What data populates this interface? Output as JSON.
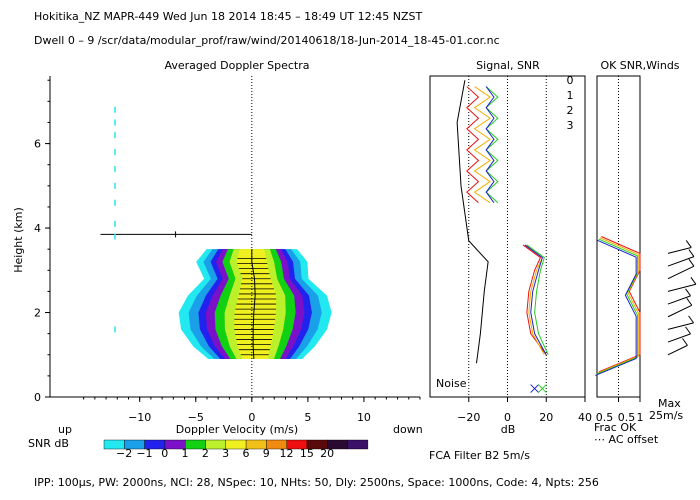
{
  "header": {
    "line1": "Hokitika_NZ  MAPR-449  Wed Jun 18 2014 18:45 – 18:49 UT 12:45 NZST",
    "line2": "Dwell  0 –  9   /scr/data/modular_prof/raw/wind/20140618/18-Jun-2014_18-45-01.cor.nc"
  },
  "footer": {
    "params": "IPP: 100µs,  PW: 2000ns,  NCI:  28,  NSpec: 10,  NHts: 50,  Dly: 2500ns,  Space: 1000ns,  Code: 4,  Npts: 256",
    "fca": "FCA Filter B2   5m/s"
  },
  "colors": {
    "snr_scale": [
      "#22e8f0",
      "#1aa0e8",
      "#2222ee",
      "#7a10c8",
      "#12d012",
      "#bcf02a",
      "#f0f020",
      "#f0c018",
      "#f08a10",
      "#ee1010",
      "#5a0a0a",
      "#2a0a30",
      "#3a1068"
    ],
    "radial_0": "#ee1010",
    "radial_1": "#f0b000",
    "radial_2": "#20d020",
    "radial_3": "#2020d0"
  },
  "chart_data": [
    {
      "type": "heatmap",
      "title": "Averaged Doppler Spectra",
      "xlabel": "Doppler Velocity (m/s)",
      "ylabel": "Height (km)",
      "xlim": [
        -18,
        15
      ],
      "ylim": [
        0,
        7.6
      ],
      "x_ticks": [
        -10,
        -5,
        0,
        5,
        10
      ],
      "x_tick_labels": [
        "−10",
        "−5",
        "0",
        "5",
        "10"
      ],
      "y_ticks": [
        0,
        2,
        4,
        6
      ],
      "y_tick_labels": [
        "0",
        "2",
        "4",
        "6"
      ],
      "x_end_labels": {
        "left": "up",
        "right": "down"
      },
      "colorbar": {
        "label": "SNR dB",
        "tick_labels": [
          "−2",
          "−1",
          "0",
          "1",
          "2",
          "3",
          "6",
          "9",
          "12",
          "15",
          "20"
        ]
      },
      "spectral_shell": {
        "heights_km": [
          0.9,
          1.2,
          1.6,
          2.0,
          2.4,
          2.8,
          3.2,
          3.5
        ],
        "center_ms": [
          0.3,
          0.2,
          0.2,
          0.3,
          0.5,
          0.4,
          0.0,
          0.0
        ],
        "halfwidth_ms": [
          2.7,
          3.5,
          4.2,
          4.4,
          4.0,
          3.0,
          3.2,
          2.6
        ]
      },
      "clutter_line": {
        "height_km": 3.85,
        "x_from_ms": -13.5,
        "x_to_ms": 0.0
      }
    },
    {
      "type": "line",
      "title": "Signal, SNR",
      "xlabel": "dB",
      "xlim": [
        -40,
        40
      ],
      "ylim": [
        0,
        7.6
      ],
      "x_ticks": [
        -20,
        0,
        20,
        40
      ],
      "x_tick_labels": [
        "−20",
        "0",
        "20",
        "40"
      ],
      "noise_label": "Noise",
      "series": [
        {
          "name": "0",
          "height_km": [
            1.0,
            1.5,
            2.0,
            2.5,
            3.0,
            3.3,
            3.6
          ],
          "snr_db": [
            20,
            12,
            10,
            11,
            14,
            17,
            8
          ]
        },
        {
          "name": "1",
          "height_km": [
            1.0,
            1.5,
            2.0,
            2.5,
            3.0,
            3.3,
            3.6
          ],
          "snr_db": [
            19,
            13,
            11,
            12,
            15,
            18,
            9
          ]
        },
        {
          "name": "2",
          "height_km": [
            1.0,
            1.5,
            2.0,
            2.5,
            3.0,
            3.3,
            3.6
          ],
          "snr_db": [
            21,
            16,
            14,
            15,
            17,
            19,
            10
          ]
        },
        {
          "name": "3",
          "height_km": [
            1.0,
            1.5,
            2.0,
            2.5,
            3.0,
            3.3,
            3.6
          ],
          "snr_db": [
            20,
            14,
            12,
            13,
            16,
            18,
            9
          ]
        },
        {
          "name": "noise",
          "height_km": [
            0.8,
            1.5,
            2.5,
            3.2,
            3.7,
            5.0,
            6.5,
            7.5
          ],
          "snr_db": [
            -16,
            -14,
            -12,
            -10,
            -20,
            -24,
            -26,
            -22
          ]
        }
      ]
    },
    {
      "type": "line",
      "title": "OK SNR,Winds",
      "xlabel": "Frac OK",
      "xlim": [
        0,
        1
      ],
      "x_ticks": [
        0.5,
        1
      ],
      "x_tick_labels": [
        "0.5",
        "1"
      ],
      "x_tick_extra_labels": [
        "0.5",
        "1"
      ],
      "extra_label": "⋯ AC offset",
      "legend": [
        "0",
        "1",
        "2",
        "3"
      ],
      "series": [
        {
          "name": "frac_ok",
          "height_km": [
            0.6,
            1.0,
            1.5,
            2.0,
            2.5,
            3.0,
            3.4,
            3.8
          ],
          "value": [
            0.05,
            1.0,
            1.0,
            1.0,
            0.75,
            1.0,
            1.0,
            0.1
          ]
        }
      ]
    },
    {
      "type": "scatter",
      "title": "Winds",
      "max_label": "Max",
      "max_value_label": "25m/s",
      "barbs_height_km": [
        1.0,
        1.3,
        1.6,
        1.9,
        2.2,
        2.5,
        2.8,
        3.1,
        3.4
      ],
      "barbs_speed_ms": [
        18,
        20,
        22,
        22,
        20,
        24,
        24,
        23,
        20
      ]
    }
  ]
}
